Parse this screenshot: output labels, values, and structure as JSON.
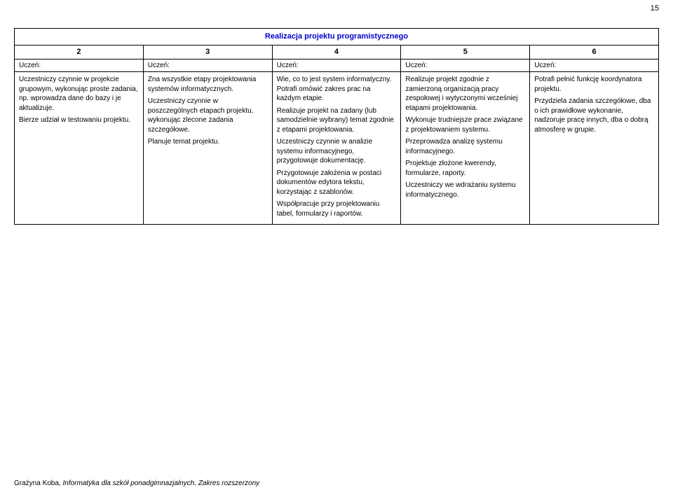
{
  "page_number": "15",
  "table": {
    "title": "Realizacja projektu programistycznego",
    "title_color": "#0000cc",
    "border_color": "#000000",
    "font_family": "Arial",
    "num_headers": [
      "2",
      "3",
      "4",
      "5",
      "6"
    ],
    "row_label": "Uczeń:",
    "columns": [
      {
        "paragraphs": [
          "Uczestniczy czynnie w projekcie grupowym, wykonując proste zadania, np. wprowadza dane do bazy i je aktualizuje.",
          "Bierze udział w testowaniu projektu."
        ]
      },
      {
        "paragraphs": [
          "Zna wszystkie etapy projektowania systemów informatycznych.",
          "Uczestniczy czynnie w poszczególnych etapach projektu, wykonując zlecone zadania szczegółowe.",
          "Planuje temat projektu."
        ]
      },
      {
        "paragraphs": [
          "Wie, co to jest system informatyczny. Potrafi omówić zakres prac na każdym etapie.",
          "Realizuje projekt na zadany (lub samodzielnie wybrany) temat zgodnie z etapami projektowania.",
          "Uczestniczy czynnie w analizie systemu informacyjnego, przygotowuje dokumentację.",
          "Przygotowuje założenia w postaci dokumentów edytora tekstu, korzystając z szablonów.",
          "Współpracuje przy projektowaniu tabel, formularzy i raportów."
        ]
      },
      {
        "paragraphs": [
          "Realizuje projekt zgodnie z zamierzoną organizacją pracy zespołowej i wytyczonymi wcześniej etapami projektowania.",
          "Wykonuje trudniejsze prace związane z projektowaniem systemu.",
          "Przeprowadza analizę systemu informacyjnego.",
          "Projektuje złożone kwerendy, formularze, raporty.",
          "Uczestniczy we wdrażaniu systemu informatycznego."
        ]
      },
      {
        "paragraphs": [
          "Potrafi pełnić funkcję koordynatora projektu.",
          "Przydziela zadania szczegółowe, dba o ich prawidłowe wykonanie, nadzoruje pracę innych, dba o dobrą atmosferę w grupie."
        ]
      }
    ]
  },
  "footer": {
    "author": "Grażyna Koba, ",
    "book": "Informatyka dla szkół ponadgimnazjalnych. Zakres rozszerzony"
  }
}
